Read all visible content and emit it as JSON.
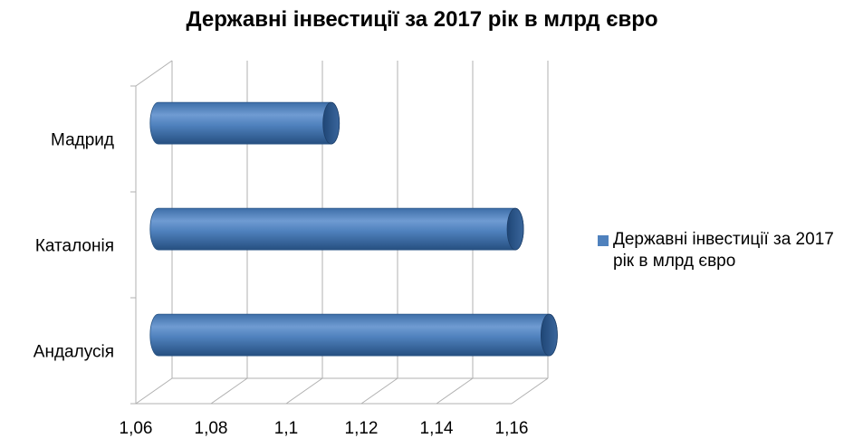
{
  "chart_data": {
    "type": "bar",
    "orientation": "horizontal",
    "title": "Державні інвестиції за 2017 рік в млрд євро",
    "categories": [
      "Андалусія",
      "Каталонія",
      "Мадрид"
    ],
    "series": [
      {
        "name": "Державні інвестиції за 2017 рік в млрд євро",
        "values": [
          1.164,
          1.155,
          1.106
        ]
      }
    ],
    "xlim": [
      1.06,
      1.16
    ],
    "xticks": [
      "1,06",
      "1,08",
      "1,1",
      "1,12",
      "1,14",
      "1,16"
    ],
    "xlabel": "",
    "ylabel": "",
    "grid": true,
    "legend_position": "right",
    "colors": {
      "bar": "#4f81bd",
      "bar_dark": "#2c5a8c",
      "grid": "#b0b0b0"
    }
  }
}
